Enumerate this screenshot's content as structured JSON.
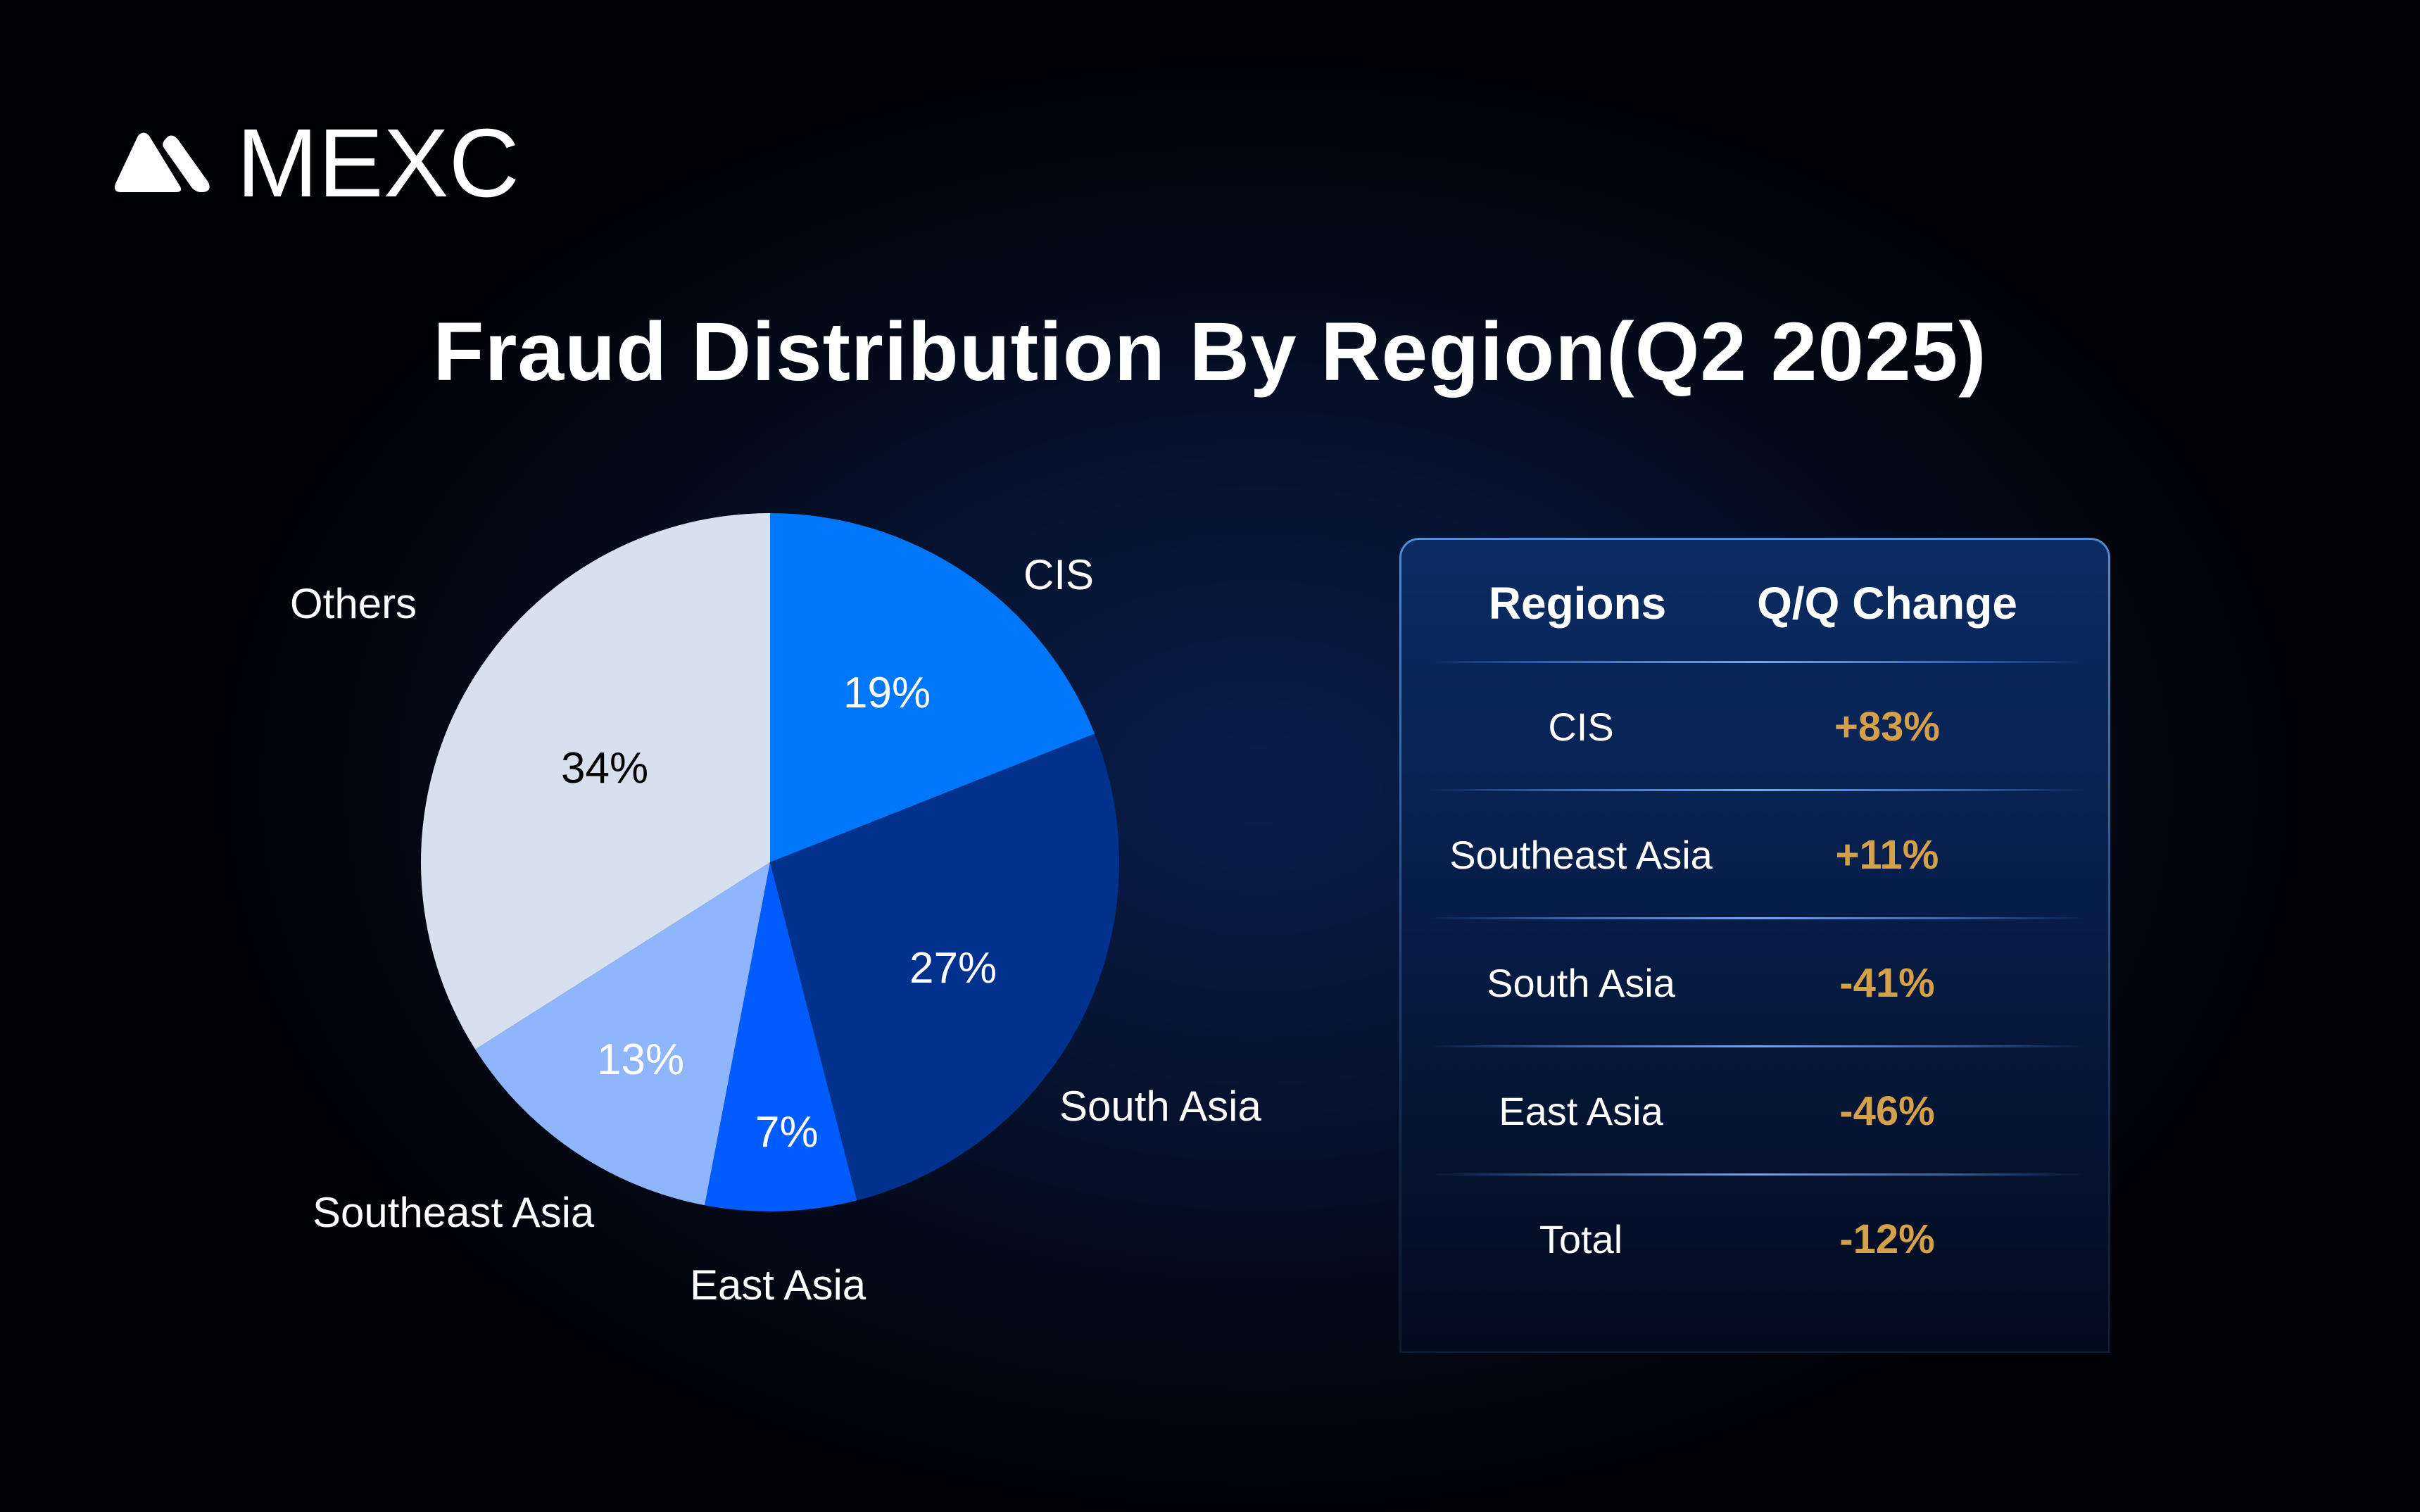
{
  "brand": {
    "name": "MEXC",
    "logo_icon": "mexc-mountain-logo-icon"
  },
  "title": "Fraud Distribution By Region(Q2 2025)",
  "colors": {
    "background": "#030918",
    "cis": "#0077f8",
    "south_asia": "#00318c",
    "east_asia": "#005cff",
    "southeast_asia": "#8fb5fd",
    "others": "#d6e0ee",
    "change_text": "#d4a04a",
    "table_border": "#4f8ed6"
  },
  "pie": {
    "slices": [
      {
        "label": "CIS",
        "value": 19,
        "pct_label": "19%",
        "color": "#0077f8",
        "pct_color": "#ffffff"
      },
      {
        "label": "South Asia",
        "value": 27,
        "pct_label": "27%",
        "color": "#00318c",
        "pct_color": "#ffffff"
      },
      {
        "label": "East Asia",
        "value": 7,
        "pct_label": "7%",
        "color": "#005cff",
        "pct_color": "#ffffff"
      },
      {
        "label": "Southeast Asia",
        "value": 13,
        "pct_label": "13%",
        "color": "#8fb5fd",
        "pct_color": "#ffffff"
      },
      {
        "label": "Others",
        "value": 34,
        "pct_label": "34%",
        "color": "#d6e0ee",
        "pct_color": "#000000"
      }
    ]
  },
  "table": {
    "headers": [
      "Regions",
      "Q/Q Change"
    ],
    "rows": [
      {
        "region": "CIS",
        "change": "+83%"
      },
      {
        "region": "Southeast Asia",
        "change": "+11%"
      },
      {
        "region": "South Asia",
        "change": "-41%"
      },
      {
        "region": "East Asia",
        "change": "-46%"
      },
      {
        "region": "Total",
        "change": "-12%"
      }
    ]
  },
  "chart_data": [
    {
      "type": "pie",
      "title": "Fraud Distribution By Region(Q2 2025)",
      "categories": [
        "CIS",
        "South Asia",
        "East Asia",
        "Southeast Asia",
        "Others"
      ],
      "values": [
        19,
        27,
        7,
        13,
        34
      ],
      "unit": "%",
      "start_angle": "12 o'clock, clockwise",
      "colors": [
        "#0077f8",
        "#00318c",
        "#005cff",
        "#8fb5fd",
        "#d6e0ee"
      ],
      "legend": "none (outer slice labels)"
    },
    {
      "type": "table",
      "title": "Q/Q Change by Region",
      "columns": [
        "Regions",
        "Q/Q Change"
      ],
      "rows": [
        [
          "CIS",
          "+83%"
        ],
        [
          "Southeast Asia",
          "+11%"
        ],
        [
          "South Asia",
          "-41%"
        ],
        [
          "East Asia",
          "-46%"
        ],
        [
          "Total",
          "-12%"
        ]
      ]
    }
  ]
}
